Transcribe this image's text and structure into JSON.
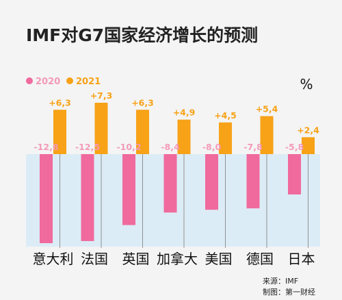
{
  "chart_data": {
    "type": "bar",
    "title": "IMF对G7国家经济增长的预测",
    "unit": "%",
    "categories": [
      "意大利",
      "法国",
      "英国",
      "加拿大",
      "美国",
      "德国",
      "日本"
    ],
    "series": [
      {
        "name": "2020",
        "color": "#f06a9d",
        "values": [
          -12.8,
          -12.5,
          -10.2,
          -8.4,
          -8.0,
          -7.8,
          -5.8
        ],
        "labels": [
          "-12,8",
          "-12,5",
          "-10,2",
          "-8,4",
          "-8,0",
          "-7,8",
          "-5,8"
        ]
      },
      {
        "name": "2021",
        "color": "#f7a217",
        "values": [
          6.3,
          7.3,
          6.3,
          4.9,
          4.5,
          5.4,
          2.4
        ],
        "labels": [
          "+6,3",
          "+7,3",
          "+6,3",
          "+4,9",
          "+4,5",
          "+5,4",
          "+2,4"
        ]
      }
    ],
    "legend_position": "top-left",
    "ylim": [
      -12.8,
      7.3
    ]
  },
  "colors": {
    "negative_zone": "#dcecf6",
    "label_2020": "#f39ab8",
    "label_2021": "#f7a217"
  },
  "footer": {
    "source": "来源：IMF",
    "credit": "制图：第一财经"
  }
}
